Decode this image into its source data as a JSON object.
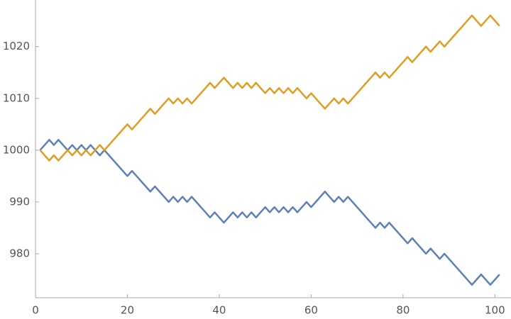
{
  "chart_data": {
    "type": "line",
    "x": [
      1,
      2,
      3,
      4,
      5,
      6,
      7,
      8,
      9,
      10,
      11,
      12,
      13,
      14,
      15,
      16,
      17,
      18,
      19,
      20,
      21,
      22,
      23,
      24,
      25,
      26,
      27,
      28,
      29,
      30,
      31,
      32,
      33,
      34,
      35,
      36,
      37,
      38,
      39,
      40,
      41,
      42,
      43,
      44,
      45,
      46,
      47,
      48,
      49,
      50,
      51,
      52,
      53,
      54,
      55,
      56,
      57,
      58,
      59,
      60,
      61,
      62,
      63,
      64,
      65,
      66,
      67,
      68,
      69,
      70,
      71,
      72,
      73,
      74,
      75,
      76,
      77,
      78,
      79,
      80,
      81,
      82,
      83,
      84,
      85,
      86,
      87,
      88,
      89,
      90,
      91,
      92,
      93,
      94,
      95,
      96,
      97,
      98,
      99,
      100,
      101
    ],
    "series": [
      {
        "color": "#5e81b5",
        "values": [
          1000,
          1001,
          1002,
          1001,
          1002,
          1001,
          1000,
          1001,
          1000,
          1001,
          1000,
          1001,
          1000,
          999,
          1000,
          999,
          998,
          997,
          996,
          995,
          996,
          995,
          994,
          993,
          992,
          993,
          992,
          991,
          990,
          991,
          990,
          991,
          990,
          991,
          990,
          989,
          988,
          987,
          988,
          987,
          986,
          987,
          988,
          987,
          988,
          987,
          988,
          987,
          988,
          989,
          988,
          989,
          988,
          989,
          988,
          989,
          988,
          989,
          990,
          989,
          990,
          991,
          992,
          991,
          990,
          991,
          990,
          991,
          990,
          989,
          988,
          987,
          986,
          985,
          986,
          985,
          986,
          985,
          984,
          983,
          982,
          983,
          982,
          981,
          980,
          981,
          980,
          979,
          980,
          979,
          978,
          977,
          976,
          975,
          974,
          975,
          976,
          975,
          974,
          975,
          976
        ]
      },
      {
        "color": "#e19c24",
        "values": [
          1000,
          999,
          998,
          999,
          998,
          999,
          1000,
          999,
          1000,
          999,
          1000,
          999,
          1000,
          1001,
          1000,
          1001,
          1002,
          1003,
          1004,
          1005,
          1004,
          1005,
          1006,
          1007,
          1008,
          1007,
          1008,
          1009,
          1010,
          1009,
          1010,
          1009,
          1010,
          1009,
          1010,
          1011,
          1012,
          1013,
          1012,
          1013,
          1014,
          1013,
          1012,
          1013,
          1012,
          1013,
          1012,
          1013,
          1012,
          1011,
          1012,
          1011,
          1012,
          1011,
          1012,
          1011,
          1012,
          1011,
          1010,
          1011,
          1010,
          1009,
          1008,
          1009,
          1010,
          1009,
          1010,
          1009,
          1010,
          1011,
          1012,
          1013,
          1014,
          1015,
          1014,
          1015,
          1014,
          1015,
          1016,
          1017,
          1018,
          1017,
          1018,
          1019,
          1020,
          1019,
          1020,
          1021,
          1020,
          1021,
          1022,
          1023,
          1024,
          1025,
          1026,
          1025,
          1024,
          1025,
          1026,
          1025,
          1024
        ]
      }
    ],
    "xlim": [
      0,
      103.5
    ],
    "ylim": [
      971.5,
      1029
    ],
    "xticks": [
      0,
      20,
      40,
      60,
      80,
      100
    ],
    "yticks": [
      980,
      990,
      1000,
      1010,
      1020
    ]
  }
}
